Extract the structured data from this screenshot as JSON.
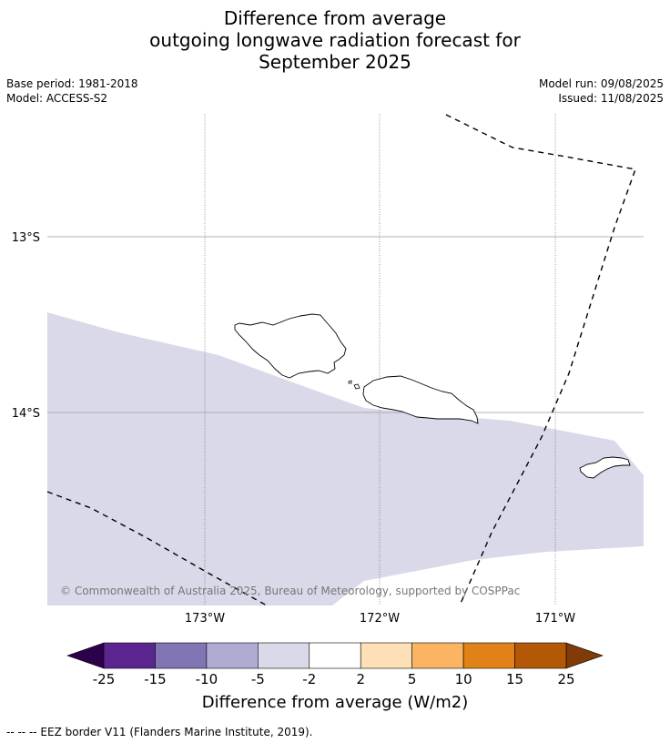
{
  "title_lines": [
    "Difference from average",
    "outgoing longwave radiation forecast for",
    "September 2025"
  ],
  "meta": {
    "base_period": "Base period: 1981-2018",
    "model": "Model: ACCESS-S2",
    "model_run": "Model run: 09/08/2025",
    "issued": "Issued: 11/08/2025"
  },
  "map": {
    "lat_labels": [
      "13°S",
      "14°S"
    ],
    "lon_labels": [
      "173°W",
      "172°W",
      "171°W"
    ],
    "copyright": "© Commonwealth of Australia 2025, Bureau of Meteorology, supported by COSPPac",
    "anomaly_band": {
      "category": "-5 to -2",
      "color": "#d9d9ea"
    }
  },
  "colorbar": {
    "ticks": [
      "-25",
      "-15",
      "-10",
      "-5",
      "-2",
      "2",
      "5",
      "10",
      "15",
      "25"
    ],
    "colors": [
      "#5b2590",
      "#8275b3",
      "#b0abd3",
      "#d9d9ea",
      "#ffffff",
      "#fde0b5",
      "#fbb562",
      "#e08218",
      "#b35807"
    ],
    "extend_low_color": "#2d004b",
    "extend_high_color": "#7f3b08",
    "title": "Difference from average (W/m2)"
  },
  "footnote": "--  --  -- EEZ border V11 (Flanders Marine Institute, 2019)."
}
